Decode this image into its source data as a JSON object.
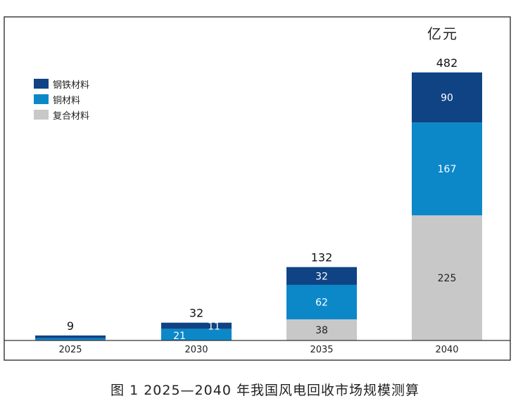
{
  "chart_data": {
    "type": "bar",
    "stacked": true,
    "unit": "亿元",
    "categories": [
      "2025",
      "2030",
      "2035",
      "2040"
    ],
    "series": [
      {
        "name": "复合材料",
        "color": "#c8c8c8",
        "values": [
          0,
          0,
          38,
          225
        ]
      },
      {
        "name": "铜材料",
        "color": "#0c88c9",
        "values": [
          4,
          21,
          62,
          167
        ]
      },
      {
        "name": "钢铁材料",
        "color": "#0f4384",
        "values": [
          5,
          11,
          32,
          90
        ]
      }
    ],
    "segment_labels": [
      [
        null,
        null,
        "38",
        "225"
      ],
      [
        null,
        "21",
        "62",
        "167"
      ],
      [
        null,
        "11",
        "32",
        "90"
      ]
    ],
    "totals": [
      "9",
      "32",
      "132",
      "482"
    ],
    "legend_order": [
      "钢铁材料",
      "铜材料",
      "复合材料"
    ],
    "legend_position": "top-left",
    "ylim": [
      0,
      482
    ],
    "grid": false
  },
  "caption": "图 1 2025—2040 年我国风电回收市场规模测算"
}
